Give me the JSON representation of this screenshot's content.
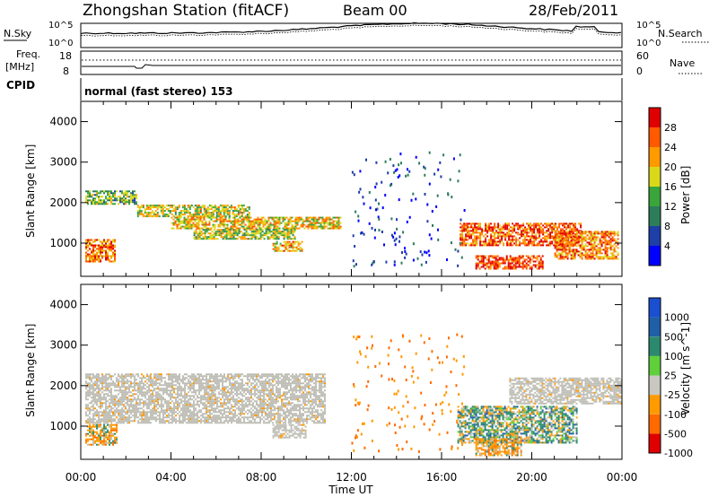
{
  "header": {
    "station": "Zhongshan Station (fitACF)",
    "beam": "Beam 00",
    "date": "28/Feb/2011"
  },
  "top_panels": {
    "nsky_label": "N.Sky",
    "nsky_ticks": [
      "10^5",
      "10^0"
    ],
    "nsearch_label": "N.Search",
    "nsearch_ticks": [
      "10^5",
      "10^0"
    ],
    "freq_label": "Freq.",
    "freq_unit": "[MHz]",
    "freq_ticks": [
      "18",
      "8"
    ],
    "nave_label": "Nave",
    "nave_ticks": [
      "60",
      "0"
    ],
    "cpid_label": "CPID",
    "cpid_value": "normal (fast stereo) 153"
  },
  "colors": {
    "power_scale": [
      "#0000ff",
      "#1e3ea8",
      "#2e7d5a",
      "#3aa53a",
      "#d9d91a",
      "#ff9a00",
      "#ff5a00",
      "#e00000"
    ],
    "velocity_scale": [
      "#1a4fd1",
      "#1f5fa6",
      "#2b8a6d",
      "#5fcf3a",
      "#c8c8c0",
      "#ff9a00",
      "#ff6a00",
      "#e00000"
    ],
    "ground_scatter": "#bebeb6"
  },
  "chart_data": [
    {
      "type": "heatmap",
      "name": "power",
      "ylabel": "Slant Range [km]",
      "yticks": [
        "4000",
        "3000",
        "2000",
        "1000"
      ],
      "ylim": [
        180,
        4500
      ],
      "xticks": [
        "00:00",
        "04:00",
        "08:00",
        "12:00",
        "16:00",
        "20:00",
        "00:00"
      ],
      "colorbar_label": "Power [dB]",
      "colorbar_ticks": [
        "28",
        "24",
        "20",
        "16",
        "12",
        "8",
        "4"
      ],
      "colorbar_range": [
        0,
        32
      ],
      "bands": [
        {
          "t0": 0.2,
          "t1": 2.5,
          "r0": 1950,
          "r1": 2300,
          "level": 14
        },
        {
          "t0": 2.5,
          "t1": 7.5,
          "r0": 1650,
          "r1": 1950,
          "level": 18
        },
        {
          "t0": 4.0,
          "t1": 11.5,
          "r0": 1350,
          "r1": 1650,
          "level": 20
        },
        {
          "t0": 5.0,
          "t1": 9.5,
          "r0": 1100,
          "r1": 1350,
          "level": 17
        },
        {
          "t0": 8.5,
          "t1": 9.8,
          "r0": 800,
          "r1": 1050,
          "level": 22
        },
        {
          "t0": 0.2,
          "t1": 1.5,
          "r0": 550,
          "r1": 1100,
          "level": 24
        },
        {
          "t0": 16.8,
          "t1": 22.2,
          "r0": 950,
          "r1": 1500,
          "level": 26
        },
        {
          "t0": 17.5,
          "t1": 20.5,
          "r0": 350,
          "r1": 700,
          "level": 28
        },
        {
          "t0": 21.0,
          "t1": 23.8,
          "r0": 600,
          "r1": 1300,
          "level": 24
        }
      ]
    },
    {
      "type": "heatmap",
      "name": "velocity",
      "ylabel": "Slant Range [km]",
      "yticks": [
        "4000",
        "3000",
        "2000",
        "1000"
      ],
      "ylim": [
        180,
        4500
      ],
      "xlabel": "Time UT",
      "xticks": [
        "00:00",
        "04:00",
        "08:00",
        "12:00",
        "16:00",
        "20:00",
        "00:00"
      ],
      "colorbar_label": "Velocity [m s^-1]",
      "colorbar_ticks": [
        "1000",
        "500",
        "100",
        "25",
        "-25",
        "-100",
        "-500",
        "-1000"
      ],
      "bands": [
        {
          "t0": 0.2,
          "t1": 10.8,
          "r0": 1100,
          "r1": 2300,
          "kind": "ground"
        },
        {
          "t0": 8.5,
          "t1": 10.0,
          "r0": 700,
          "r1": 1050,
          "kind": "ground"
        },
        {
          "t0": 0.2,
          "t1": 1.6,
          "r0": 550,
          "r1": 1050,
          "kind": "mixed_orange"
        },
        {
          "t0": 16.7,
          "t1": 22.0,
          "r0": 600,
          "r1": 1500,
          "kind": "mixed_green"
        },
        {
          "t0": 17.5,
          "t1": 19.5,
          "r0": 300,
          "r1": 700,
          "kind": "mixed_orange"
        },
        {
          "t0": 19.0,
          "t1": 24.0,
          "r0": 1550,
          "r1": 2200,
          "kind": "ground"
        }
      ]
    }
  ]
}
